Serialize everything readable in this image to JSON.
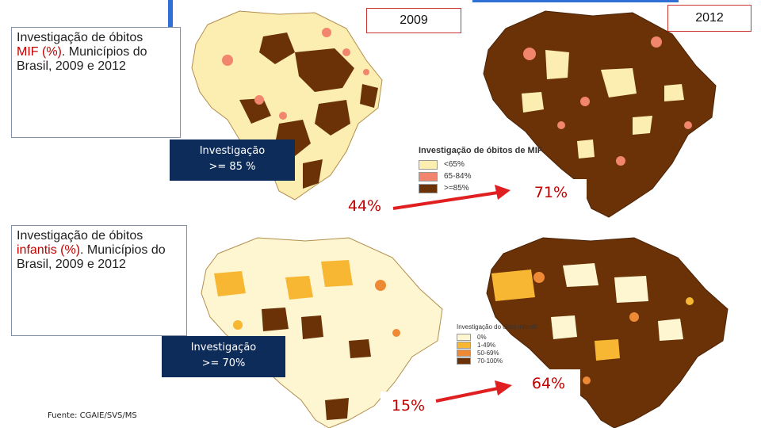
{
  "mif": {
    "title_part1": "Investigação de óbitos",
    "title_highlight": "MIF (%)",
    "title_part2": ". Municípios do Brasil, 2009 e 2012",
    "year_2009": "2009",
    "year_2012": "2012",
    "target_label_line1": "Investigação",
    "target_label_line2": ">= 85 %",
    "pct_2009": "44%",
    "pct_2012": "71%",
    "legend": {
      "title": "Investigação de óbitos de MIF",
      "items": [
        {
          "label": "<65%",
          "color": "#fbeeb0"
        },
        {
          "label": "65-84%",
          "color": "#f2856d"
        },
        {
          "label": ">=85%",
          "color": "#6b3208"
        }
      ]
    }
  },
  "infantil": {
    "title_part1": "Investigação de óbitos",
    "title_highlight": "infantis (%)",
    "title_part2": ". Municípios do Brasil, 2009 e 2012",
    "target_label_line1": "Investigação",
    "target_label_line2": ">= 70%",
    "pct_2009": "15%",
    "pct_2012": "64%",
    "legend": {
      "title": "Investigação do óbito infantil",
      "items": [
        {
          "label": "0%",
          "color": "#fdf6d0"
        },
        {
          "label": "1-49%",
          "color": "#f7b733"
        },
        {
          "label": "50-69%",
          "color": "#ee8a35"
        },
        {
          "label": "70-100%",
          "color": "#6b3208"
        }
      ]
    }
  },
  "source": "Fuente: CGAIE/SVS/MS",
  "colors": {
    "accent_red": "#e02020",
    "navy": "#0e2c5a",
    "map_dark": "#6b3208",
    "map_light": "#fbeeb0"
  }
}
